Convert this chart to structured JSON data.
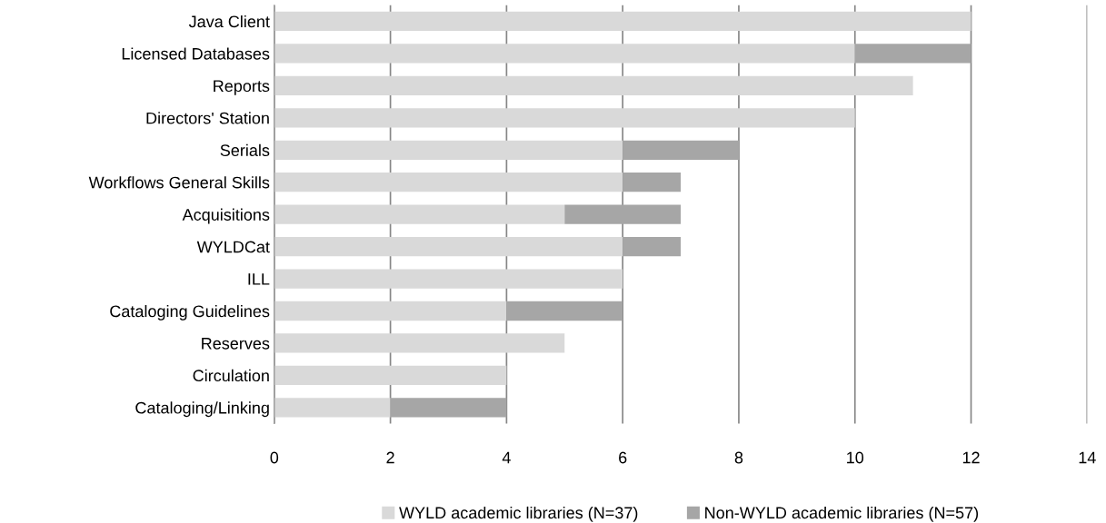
{
  "chart_data": {
    "type": "bar",
    "orientation": "horizontal",
    "stacked": true,
    "categories": [
      "Java Client",
      "Licensed Databases",
      "Reports",
      "Directors' Station",
      "Serials",
      "Workflows General Skills",
      "Acquisitions",
      "WYLDCat",
      "ILL",
      "Cataloging Guidelines",
      "Reserves",
      "Circulation",
      "Cataloging/Linking"
    ],
    "series": [
      {
        "name": "WYLD academic libraries (N=37)",
        "color": "#d9d9d9",
        "values": [
          12,
          10,
          11,
          10,
          6,
          6,
          5,
          6,
          6,
          4,
          5,
          4,
          2
        ]
      },
      {
        "name": "Non-WYLD academic libraries (N=57)",
        "color": "#a6a6a6",
        "values": [
          0,
          2,
          0,
          0,
          2,
          1,
          2,
          1,
          0,
          2,
          0,
          0,
          2
        ]
      }
    ],
    "xlim": [
      0,
      14
    ],
    "xticks": [
      0,
      2,
      4,
      6,
      8,
      10,
      12,
      14
    ],
    "grid": "x",
    "legend": "bottom"
  }
}
